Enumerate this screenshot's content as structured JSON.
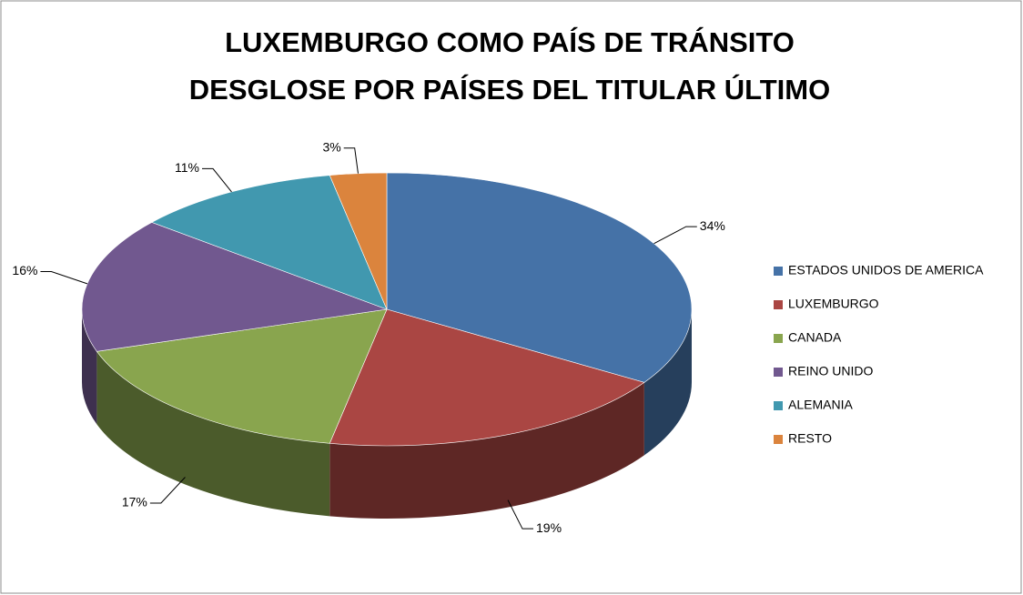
{
  "chart_data": {
    "type": "pie",
    "title": [
      "LUXEMBURGO COMO PAÍS DE TRÁNSITO",
      "DESGLOSE POR PAÍSES DEL TITULAR ÚLTIMO"
    ],
    "categories": [
      "ESTADOS UNIDOS DE AMERICA",
      "LUXEMBURGO",
      "CANADA",
      "REINO UNIDO",
      "ALEMANIA",
      "RESTO"
    ],
    "values": [
      34,
      19,
      17,
      16,
      11,
      3
    ],
    "value_labels": [
      "34%",
      "19%",
      "17%",
      "16%",
      "11%",
      "3%"
    ],
    "colors": [
      "#4572A7",
      "#AA4643",
      "#89A54E",
      "#71588F",
      "#4198AF",
      "#DB843D"
    ],
    "legend": "right"
  }
}
